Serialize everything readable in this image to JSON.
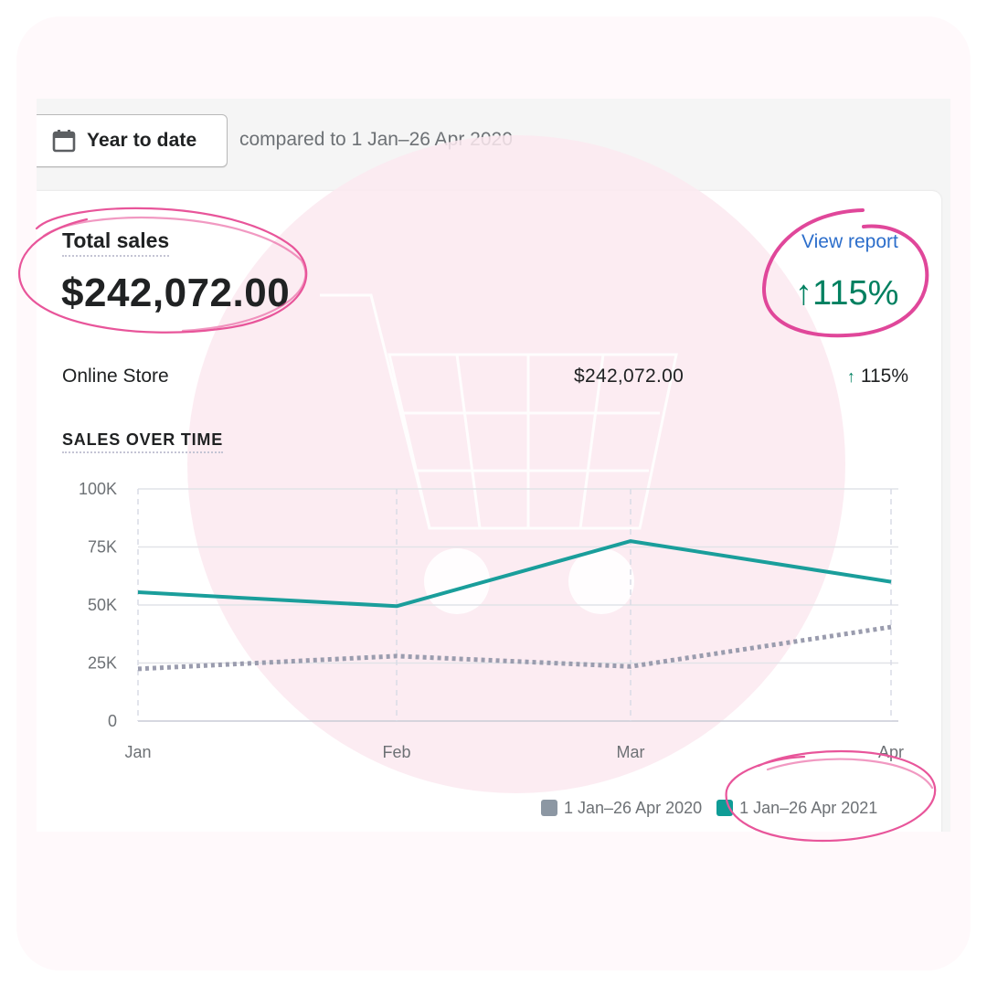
{
  "toolbar": {
    "date_range_label": "Year to date",
    "calendar_icon": "calendar-icon",
    "compare_text": "compared to 1 Jan–26 Apr 2020"
  },
  "summary": {
    "title": "Total sales",
    "total_value": "$242,072.00",
    "view_report_label": "View report",
    "change_arrow": "↑",
    "change_value": "115%"
  },
  "breakdown": [
    {
      "channel": "Online Store",
      "value": "$242,072.00",
      "change_arrow": "↑",
      "change": "115%"
    }
  ],
  "chart_section": {
    "title": "SALES OVER TIME"
  },
  "colors": {
    "current_series": "#1a9e9b",
    "previous_series": "#9a9cae",
    "positive": "#008060",
    "link": "#2c6ecb",
    "annotation_pink": "#e8559a"
  },
  "chart_data": {
    "type": "line",
    "categories": [
      "Jan",
      "Feb",
      "Mar",
      "Apr"
    ],
    "y_ticks": [
      "0",
      "25K",
      "50K",
      "75K",
      "100K"
    ],
    "ylim": [
      0,
      100000
    ],
    "grid": true,
    "legend_position": "bottom-right",
    "series": [
      {
        "name": "1 Jan–26 Apr 2020",
        "values": [
          22500,
          28000,
          23500,
          40500
        ],
        "style": "dotted",
        "color": "#9a9cae"
      },
      {
        "name": "1 Jan–26 Apr 2021",
        "values": [
          55500,
          49500,
          77500,
          60000
        ],
        "style": "solid",
        "color": "#1a9e9b"
      }
    ]
  },
  "legend": [
    {
      "label": "1 Jan–26 Apr 2020",
      "color": "#8c97a3"
    },
    {
      "label": "1 Jan–26 Apr 2021",
      "color": "#0f9c96"
    }
  ]
}
